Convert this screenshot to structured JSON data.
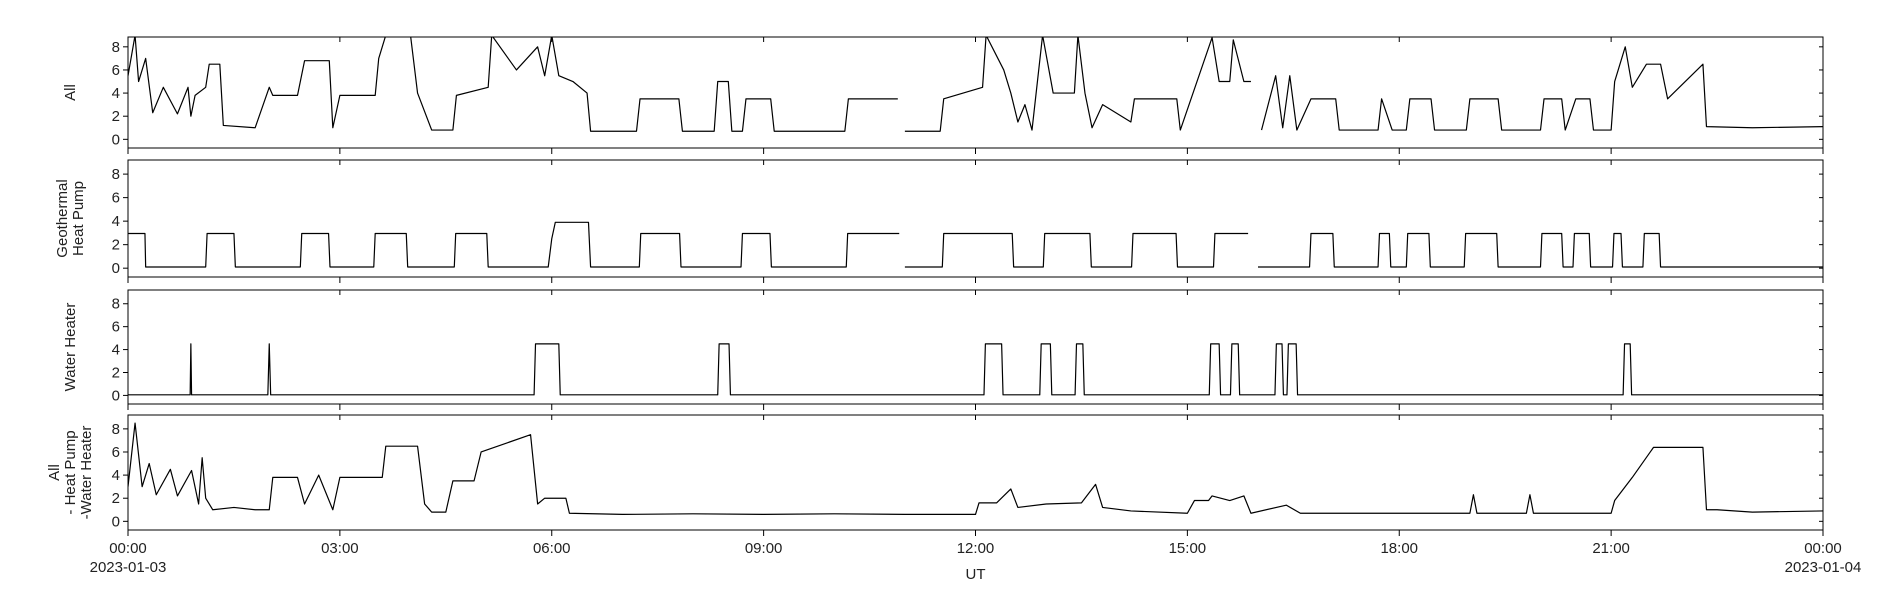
{
  "chart_data": [
    {
      "type": "line",
      "ylabel": "All",
      "color": "#000000",
      "xlim": [
        0,
        24
      ],
      "ylim": [
        -0.75,
        8.85
      ],
      "yticks": [
        0,
        2,
        4,
        6,
        8
      ],
      "x": [
        0,
        0.1,
        0.15,
        0.25,
        0.35,
        0.5,
        0.7,
        0.85,
        0.89,
        0.95,
        1.1,
        1.15,
        1.3,
        1.35,
        1.8,
        2.0,
        2.05,
        2.4,
        2.5,
        2.85,
        2.9,
        3.0,
        3.5,
        3.55,
        3.65,
        4.0,
        4.1,
        4.3,
        4.6,
        4.65,
        5.1,
        5.15,
        5.5,
        5.8,
        5.9,
        6.0,
        6.1,
        6.3,
        6.5,
        6.55,
        7.2,
        7.25,
        7.8,
        7.85,
        8.3,
        8.35,
        8.5,
        8.55,
        8.7,
        8.75,
        9.1,
        9.15,
        10.15,
        10.2,
        10.9,
        10.95,
        11.0,
        11.5,
        11.55,
        12.1,
        12.15,
        12.4,
        12.5,
        12.6,
        12.7,
        12.8,
        12.95,
        13.1,
        13.4,
        13.45,
        13.55,
        13.65,
        13.8,
        14.2,
        14.25,
        14.85,
        14.9,
        15.35,
        15.45,
        15.6,
        15.65,
        15.8,
        15.9,
        15.95,
        16.05,
        16.25,
        16.35,
        16.45,
        16.55,
        16.75,
        17.1,
        17.15,
        17.7,
        17.75,
        17.9,
        18.1,
        18.15,
        18.45,
        18.5,
        18.95,
        19.0,
        19.4,
        19.45,
        20.0,
        20.05,
        20.3,
        20.35,
        20.5,
        20.7,
        20.75,
        21.0,
        21.05,
        21.2,
        21.3,
        21.5,
        21.7,
        21.8,
        22.3,
        22.35,
        23,
        24
      ],
      "values": [
        5.5,
        9,
        5,
        7,
        2.3,
        4.5,
        2.2,
        4.5,
        2,
        3.8,
        4.5,
        6.5,
        6.5,
        1.2,
        1.0,
        4.5,
        3.8,
        3.8,
        6.8,
        6.8,
        1.0,
        3.8,
        3.8,
        7,
        9,
        9,
        4,
        0.8,
        0.8,
        3.8,
        4.5,
        9,
        6,
        8,
        5.5,
        9,
        5.5,
        5,
        4,
        0.7,
        0.7,
        3.5,
        3.5,
        0.7,
        0.7,
        5,
        5,
        0.7,
        0.7,
        3.5,
        3.5,
        0.7,
        0.7,
        3.5,
        3.5,
        null,
        0.7,
        0.7,
        3.5,
        4.5,
        9,
        6,
        4,
        1.5,
        3,
        0.8,
        9,
        4,
        4,
        9,
        4,
        1.0,
        3,
        1.5,
        3.5,
        3.5,
        0.8,
        8.8,
        5,
        5,
        8.6,
        5,
        5,
        null,
        0.8,
        5.5,
        1,
        5.5,
        0.8,
        3.5,
        3.5,
        0.8,
        0.8,
        3.5,
        0.8,
        0.8,
        3.5,
        3.5,
        0.8,
        0.8,
        3.5,
        3.5,
        0.8,
        0.8,
        3.5,
        3.5,
        0.8,
        3.5,
        3.5,
        0.8,
        0.8,
        5,
        8,
        4.5,
        6.5,
        6.5,
        3.5,
        6.5,
        1.1,
        1.0,
        1.1
      ]
    },
    {
      "type": "line",
      "ylabel": "Geothermal\nHeat Pump",
      "color": "#000000",
      "xlim": [
        0,
        24
      ],
      "ylim": [
        -0.75,
        9.2
      ],
      "yticks": [
        0,
        2,
        4,
        6,
        8
      ],
      "x": [
        0,
        0.24,
        0.25,
        1.1,
        1.12,
        1.5,
        1.52,
        2.44,
        2.46,
        2.84,
        2.86,
        3.48,
        3.5,
        3.94,
        3.96,
        4.62,
        4.64,
        5.08,
        5.1,
        5.95,
        6.0,
        6.05,
        6.52,
        6.55,
        7.24,
        7.26,
        7.81,
        7.83,
        8.68,
        8.7,
        9.09,
        9.11,
        10.17,
        10.19,
        10.92,
        10.95,
        11.0,
        11.53,
        11.55,
        12.52,
        12.54,
        12.96,
        12.98,
        13.62,
        13.64,
        14.21,
        14.23,
        14.84,
        14.86,
        15.37,
        15.39,
        15.86,
        15.9,
        16.0,
        16.73,
        16.75,
        17.06,
        17.08,
        17.7,
        17.72,
        17.86,
        17.88,
        18.1,
        18.12,
        18.42,
        18.44,
        18.92,
        18.94,
        19.38,
        19.4,
        20.0,
        20.02,
        20.3,
        20.32,
        20.46,
        20.48,
        20.69,
        20.71,
        21.02,
        21.04,
        21.14,
        21.16,
        21.45,
        21.47,
        21.68,
        21.7,
        24
      ],
      "values": [
        2.95,
        2.95,
        0.1,
        0.1,
        2.95,
        2.95,
        0.1,
        0.1,
        2.95,
        2.95,
        0.1,
        0.1,
        2.95,
        2.95,
        0.1,
        0.1,
        2.95,
        2.95,
        0.1,
        0.1,
        2.5,
        3.9,
        3.9,
        0.1,
        0.1,
        2.95,
        2.95,
        0.1,
        0.1,
        2.95,
        2.95,
        0.1,
        0.1,
        2.95,
        2.95,
        null,
        0.1,
        0.1,
        2.95,
        2.95,
        0.1,
        0.1,
        2.95,
        2.95,
        0.1,
        0.1,
        2.95,
        2.95,
        0.1,
        0.1,
        2.95,
        2.95,
        null,
        0.1,
        0.1,
        2.95,
        2.95,
        0.1,
        0.1,
        2.95,
        2.95,
        0.1,
        0.1,
        2.95,
        2.95,
        0.1,
        0.1,
        2.95,
        2.95,
        0.1,
        0.1,
        2.95,
        2.95,
        0.1,
        0.1,
        2.95,
        2.95,
        0.1,
        0.1,
        2.95,
        2.95,
        0.1,
        0.1,
        2.95,
        2.95,
        0.1,
        0.1
      ]
    },
    {
      "type": "line",
      "ylabel": "Water Heater",
      "color": "#000000",
      "xlim": [
        0,
        24
      ],
      "ylim": [
        -0.75,
        9.2
      ],
      "yticks": [
        0,
        2,
        4,
        6,
        8
      ],
      "x": [
        0,
        0.88,
        0.89,
        0.9,
        1.98,
        2.0,
        2.02,
        5.75,
        5.77,
        6.1,
        6.12,
        8.35,
        8.37,
        8.51,
        8.53,
        12.12,
        12.14,
        12.37,
        12.39,
        12.91,
        12.93,
        13.06,
        13.08,
        13.41,
        13.43,
        13.52,
        13.54,
        15.31,
        15.33,
        15.45,
        15.47,
        15.61,
        15.63,
        15.72,
        15.74,
        16.24,
        16.26,
        16.34,
        16.36,
        16.41,
        16.43,
        16.54,
        16.56,
        21.17,
        21.19,
        21.27,
        21.29,
        24
      ],
      "values": [
        0.05,
        0.05,
        4.5,
        0.05,
        0.05,
        4.5,
        0.05,
        0.05,
        4.5,
        4.5,
        0.05,
        0.05,
        4.5,
        4.5,
        0.05,
        0.05,
        4.5,
        4.5,
        0.05,
        0.05,
        4.5,
        4.5,
        0.05,
        0.05,
        4.5,
        4.5,
        0.05,
        0.05,
        4.5,
        4.5,
        0.05,
        0.05,
        4.5,
        4.5,
        0.05,
        0.05,
        4.5,
        4.5,
        0.05,
        0.05,
        4.5,
        4.5,
        0.05,
        0.05,
        4.5,
        4.5,
        0.05,
        0.05
      ]
    },
    {
      "type": "line",
      "ylabel": "All\n- Heat Pump\n-Water Heater",
      "xlabel": "UT",
      "color": "#000000",
      "xlim": [
        0,
        24
      ],
      "ylim": [
        -0.75,
        9.2
      ],
      "yticks": [
        0,
        2,
        4,
        6,
        8
      ],
      "xticks": [
        {
          "value": 0,
          "label": "00:00\n2023-01-03"
        },
        {
          "value": 3,
          "label": "03:00"
        },
        {
          "value": 6,
          "label": "06:00"
        },
        {
          "value": 9,
          "label": "09:00"
        },
        {
          "value": 12,
          "label": "12:00"
        },
        {
          "value": 15,
          "label": "15:00"
        },
        {
          "value": 18,
          "label": "18:00"
        },
        {
          "value": 21,
          "label": "21:00"
        },
        {
          "value": 24,
          "label": "00:00\n2023-01-04"
        }
      ],
      "x": [
        0,
        0.1,
        0.2,
        0.3,
        0.4,
        0.6,
        0.7,
        0.9,
        1.0,
        1.05,
        1.1,
        1.2,
        1.5,
        1.8,
        2.0,
        2.05,
        2.4,
        2.5,
        2.7,
        2.9,
        3.0,
        3.6,
        3.65,
        4.1,
        4.2,
        4.3,
        4.5,
        4.6,
        4.9,
        5.0,
        5.7,
        5.8,
        5.9,
        6.2,
        6.25,
        7.0,
        8.0,
        9.0,
        10.0,
        11.0,
        12.0,
        12.05,
        12.3,
        12.5,
        12.6,
        13.0,
        13.5,
        13.7,
        13.8,
        14.2,
        15.0,
        15.1,
        15.3,
        15.35,
        15.6,
        15.8,
        15.9,
        16.4,
        16.6,
        17.0,
        18.0,
        19.0,
        19.05,
        19.1,
        19.8,
        19.85,
        19.9,
        21.0,
        21.05,
        21.3,
        21.6,
        22.3,
        22.35,
        22.5,
        23.0,
        24
      ],
      "values": [
        3,
        8.5,
        3,
        5,
        2.3,
        4.5,
        2.2,
        4.4,
        1.5,
        5.5,
        2,
        1.0,
        1.2,
        1.0,
        1.0,
        3.8,
        3.8,
        1.5,
        4,
        1.0,
        3.8,
        3.8,
        6.5,
        6.5,
        1.5,
        0.8,
        0.8,
        3.5,
        3.5,
        6,
        7.5,
        1.5,
        2,
        2,
        0.7,
        0.6,
        0.65,
        0.6,
        0.65,
        0.6,
        0.6,
        1.6,
        1.6,
        2.8,
        1.2,
        1.5,
        1.6,
        3.2,
        1.2,
        0.9,
        0.7,
        1.8,
        1.8,
        2.2,
        1.8,
        2.2,
        0.7,
        1.4,
        0.7,
        0.7,
        0.7,
        0.7,
        2.3,
        0.7,
        0.7,
        2.3,
        0.7,
        0.7,
        1.8,
        3.8,
        6.4,
        6.4,
        1.0,
        1.0,
        0.8,
        0.9
      ]
    }
  ]
}
